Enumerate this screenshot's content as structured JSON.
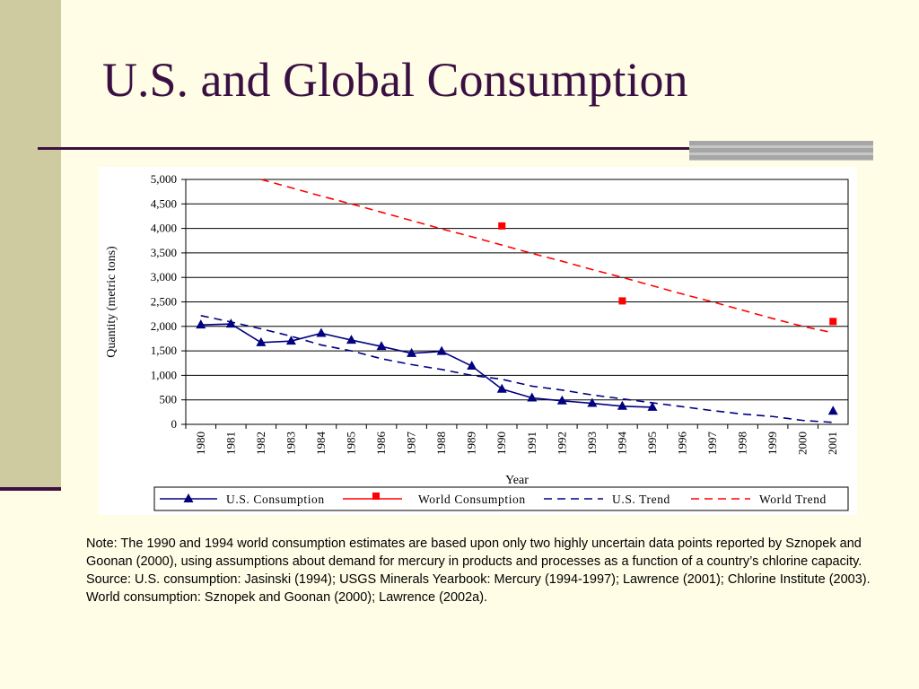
{
  "slide": {
    "title": "U.S. and Global Consumption",
    "note": "Note: The 1990 and 1994 world consumption estimates are based upon only two highly uncertain data points reported by Sznopek and Goonan (2000), using assumptions about demand for mercury in products and processes as a function of a country’s chlorine capacity.",
    "source": "Source: U.S. consumption: Jasinski (1994); USGS Minerals Yearbook: Mercury (1994-1997); Lawrence (2001); Chlorine Institute (2003). World consumption: Sznopek and Goonan (2000); Lawrence (2002a)."
  },
  "colors": {
    "title": "#3a1042",
    "background": "#fffde6",
    "us_series": "#000080",
    "world_series": "#ff0000"
  },
  "chart_data": {
    "type": "line",
    "xlabel": "Year",
    "ylabel": "Quantity (metric tons)",
    "x": [
      "1980",
      "1981",
      "1982",
      "1983",
      "1984",
      "1985",
      "1986",
      "1987",
      "1988",
      "1989",
      "1990",
      "1991",
      "1992",
      "1993",
      "1994",
      "1995",
      "1996",
      "1997",
      "1998",
      "1999",
      "2000",
      "2001"
    ],
    "yticks": [
      "0",
      "500",
      "1,000",
      "1,500",
      "2,000",
      "2,500",
      "3,000",
      "3,500",
      "4,000",
      "4,500",
      "5,000"
    ],
    "ylim": [
      0,
      5000
    ],
    "grid": true,
    "legend_position": "bottom",
    "series": [
      {
        "name": "U.S. Consumption",
        "style": "line-triangle",
        "color": "#000080",
        "points": [
          [
            "1980",
            2030
          ],
          [
            "1981",
            2050
          ],
          [
            "1982",
            1670
          ],
          [
            "1983",
            1700
          ],
          [
            "1984",
            1860
          ],
          [
            "1985",
            1720
          ],
          [
            "1986",
            1590
          ],
          [
            "1987",
            1450
          ],
          [
            "1988",
            1490
          ],
          [
            "1989",
            1190
          ],
          [
            "1990",
            720
          ],
          [
            "1991",
            540
          ],
          [
            "1992",
            480
          ],
          [
            "1993",
            430
          ],
          [
            "1994",
            370
          ],
          [
            "1995",
            350
          ]
        ],
        "extra_points": [
          [
            "2001",
            270
          ]
        ]
      },
      {
        "name": "World Consumption",
        "style": "marker-square",
        "color": "#ff0000",
        "points": [
          [
            "1990",
            4050
          ],
          [
            "1994",
            2520
          ],
          [
            "2001",
            2100
          ]
        ]
      },
      {
        "name": "U.S. Trend",
        "style": "dashed",
        "color": "#000080",
        "points": [
          [
            "1980",
            2220
          ],
          [
            "1981",
            2090
          ],
          [
            "1982",
            1950
          ],
          [
            "1983",
            1800
          ],
          [
            "1984",
            1620
          ],
          [
            "1985",
            1500
          ],
          [
            "1986",
            1340
          ],
          [
            "1987",
            1220
          ],
          [
            "1988",
            1120
          ],
          [
            "1989",
            1000
          ],
          [
            "1990",
            920
          ],
          [
            "1991",
            780
          ],
          [
            "1992",
            700
          ],
          [
            "1993",
            600
          ],
          [
            "1994",
            520
          ],
          [
            "1995",
            440
          ],
          [
            "1996",
            360
          ],
          [
            "1997",
            280
          ],
          [
            "1998",
            210
          ],
          [
            "1999",
            160
          ],
          [
            "2000",
            80
          ],
          [
            "2001",
            40
          ]
        ]
      },
      {
        "name": "World Trend",
        "style": "dashed",
        "color": "#ff0000",
        "points": [
          [
            "1982",
            5000
          ],
          [
            "1983",
            4830
          ],
          [
            "1984",
            4660
          ],
          [
            "1985",
            4500
          ],
          [
            "1986",
            4330
          ],
          [
            "1987",
            4160
          ],
          [
            "1988",
            3990
          ],
          [
            "1989",
            3830
          ],
          [
            "1990",
            3660
          ],
          [
            "1991",
            3490
          ],
          [
            "1992",
            3330
          ],
          [
            "1993",
            3160
          ],
          [
            "1994",
            3000
          ],
          [
            "1995",
            2830
          ],
          [
            "1996",
            2660
          ],
          [
            "1997",
            2500
          ],
          [
            "1998",
            2330
          ],
          [
            "1999",
            2160
          ],
          [
            "2000",
            2000
          ],
          [
            "2001",
            1870
          ]
        ]
      }
    ]
  }
}
